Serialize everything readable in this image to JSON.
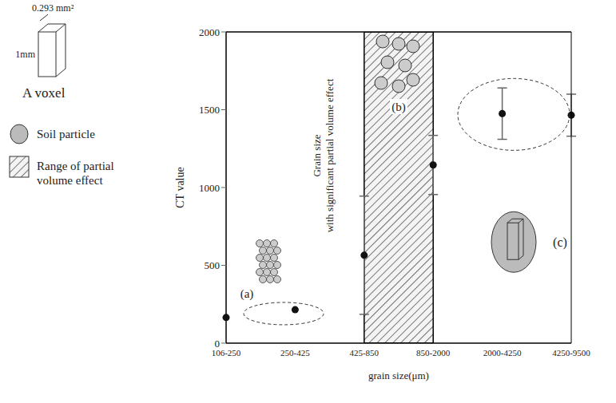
{
  "chart_data": {
    "type": "scatter",
    "x_label": "grain size(μm)",
    "y_label": "CT value",
    "categories": [
      "106-250",
      "250-425",
      "425-850",
      "850-2000",
      "2000-4250",
      "4250-9500"
    ],
    "values": [
      165,
      215,
      565,
      1145,
      1475,
      1465
    ],
    "errors": [
      null,
      null,
      380,
      190,
      165,
      135
    ],
    "color": "#111111",
    "marker": "circle",
    "ylim": [
      0,
      2000
    ],
    "yticks": [
      0,
      500,
      1000,
      1500,
      2000
    ],
    "grid": false,
    "legend": "left",
    "legend_entries": [
      {
        "label": "Soil particle",
        "marker": "circle"
      },
      {
        "label": "Range of partial volume effect",
        "marker": "hatch"
      }
    ],
    "inset": {
      "title": "A voxel",
      "depth_label": "1mm",
      "area_label": "0.293 mm²"
    },
    "shaded_range": {
      "from": "425-850",
      "to": "850-2000",
      "label_lines": [
        "Grain size",
        "with significant partial volume effect"
      ]
    },
    "annotations": [
      {
        "text": "(a)",
        "categories": [
          "106-250",
          "250-425"
        ]
      },
      {
        "text": "(b)",
        "categories": [
          "425-850",
          "850-2000"
        ]
      },
      {
        "text": "(c)",
        "categories": [
          "2000-4250",
          "4250-9500"
        ]
      }
    ]
  }
}
